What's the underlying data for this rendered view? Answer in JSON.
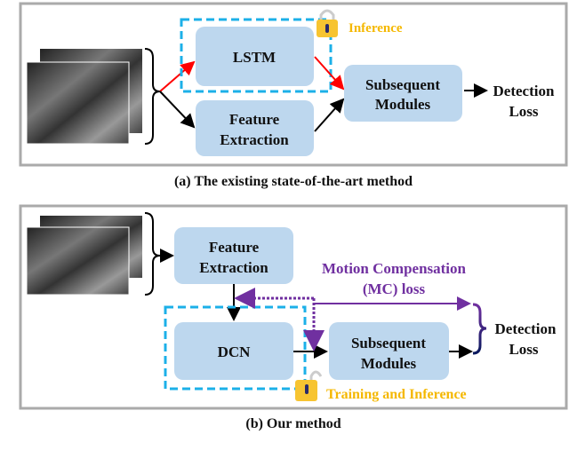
{
  "panel_a": {
    "lstm": "LSTM",
    "feature_extraction": [
      "Feature",
      "Extraction"
    ],
    "subsequent_modules": [
      "Subsequent",
      "Modules"
    ],
    "detection_loss": [
      "Detection",
      "Loss"
    ],
    "lock_label": "Inference",
    "caption": "(a) The existing state-of-the-art method"
  },
  "panel_b": {
    "feature_extraction": [
      "Feature",
      "Extraction"
    ],
    "dcn": "DCN",
    "subsequent_modules": [
      "Subsequent",
      "Modules"
    ],
    "detection_loss": [
      "Detection",
      "Loss"
    ],
    "mc_loss": [
      "Motion Compensation",
      "(MC) loss"
    ],
    "lock_label": "Training and Inference",
    "caption": "(b) Our method"
  },
  "colors": {
    "box": "#bdd7ee",
    "dashed": "#1cb0e8",
    "lock": "#f7c431",
    "lock_label": "#f5b800",
    "mc": "#7030a0",
    "red_arrow": "#ff0000"
  }
}
